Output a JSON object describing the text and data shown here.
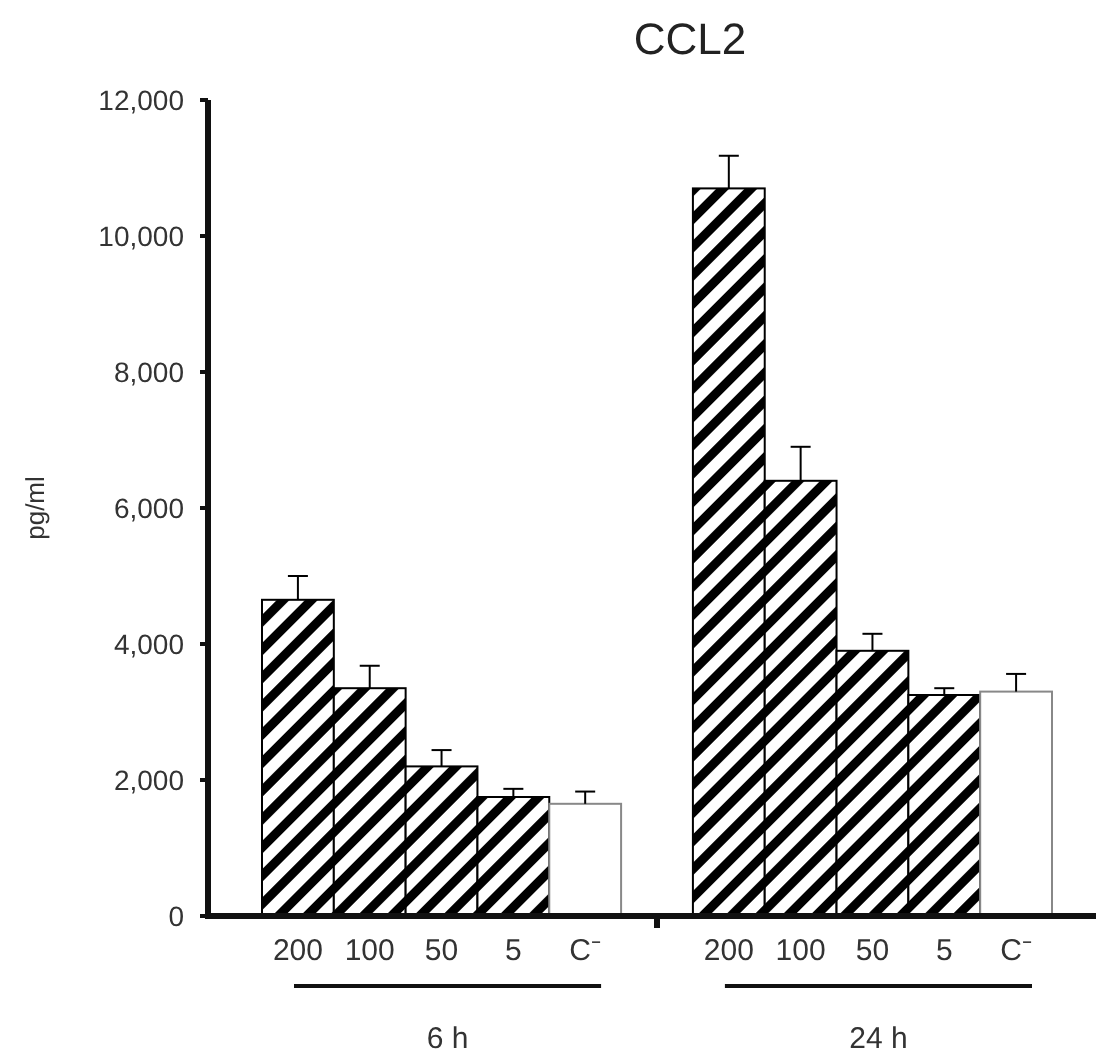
{
  "chart_data": {
    "type": "bar",
    "title": "CCL2",
    "ylabel": "pg/ml",
    "categories": [
      "200",
      "100",
      "50",
      "5",
      "C⁻",
      null,
      "200",
      "100",
      "50",
      "5",
      "C⁻"
    ],
    "values": [
      4650,
      3350,
      2200,
      1750,
      1650,
      null,
      10700,
      6400,
      3900,
      3250,
      3300
    ],
    "errors": [
      350,
      330,
      240,
      120,
      180,
      null,
      480,
      500,
      250,
      100,
      260
    ],
    "colors": [
      "#000000",
      "#000000",
      "#000000",
      "#000000",
      "#ffffff",
      null,
      "#000000",
      "#000000",
      "#000000",
      "#000000",
      "#ffffff"
    ],
    "ylim": [
      0,
      12000
    ],
    "yticks": [
      {
        "value": 0,
        "label": "0"
      },
      {
        "value": 2000,
        "label": "2,000"
      },
      {
        "value": 4000,
        "label": "4,000"
      },
      {
        "value": 6000,
        "label": "6,000"
      },
      {
        "value": 8000,
        "label": "8,000"
      },
      {
        "value": 10000,
        "label": "10,000"
      },
      {
        "value": 12000,
        "label": "12,000"
      }
    ],
    "annotations": [
      "6 h",
      "24 h"
    ]
  }
}
